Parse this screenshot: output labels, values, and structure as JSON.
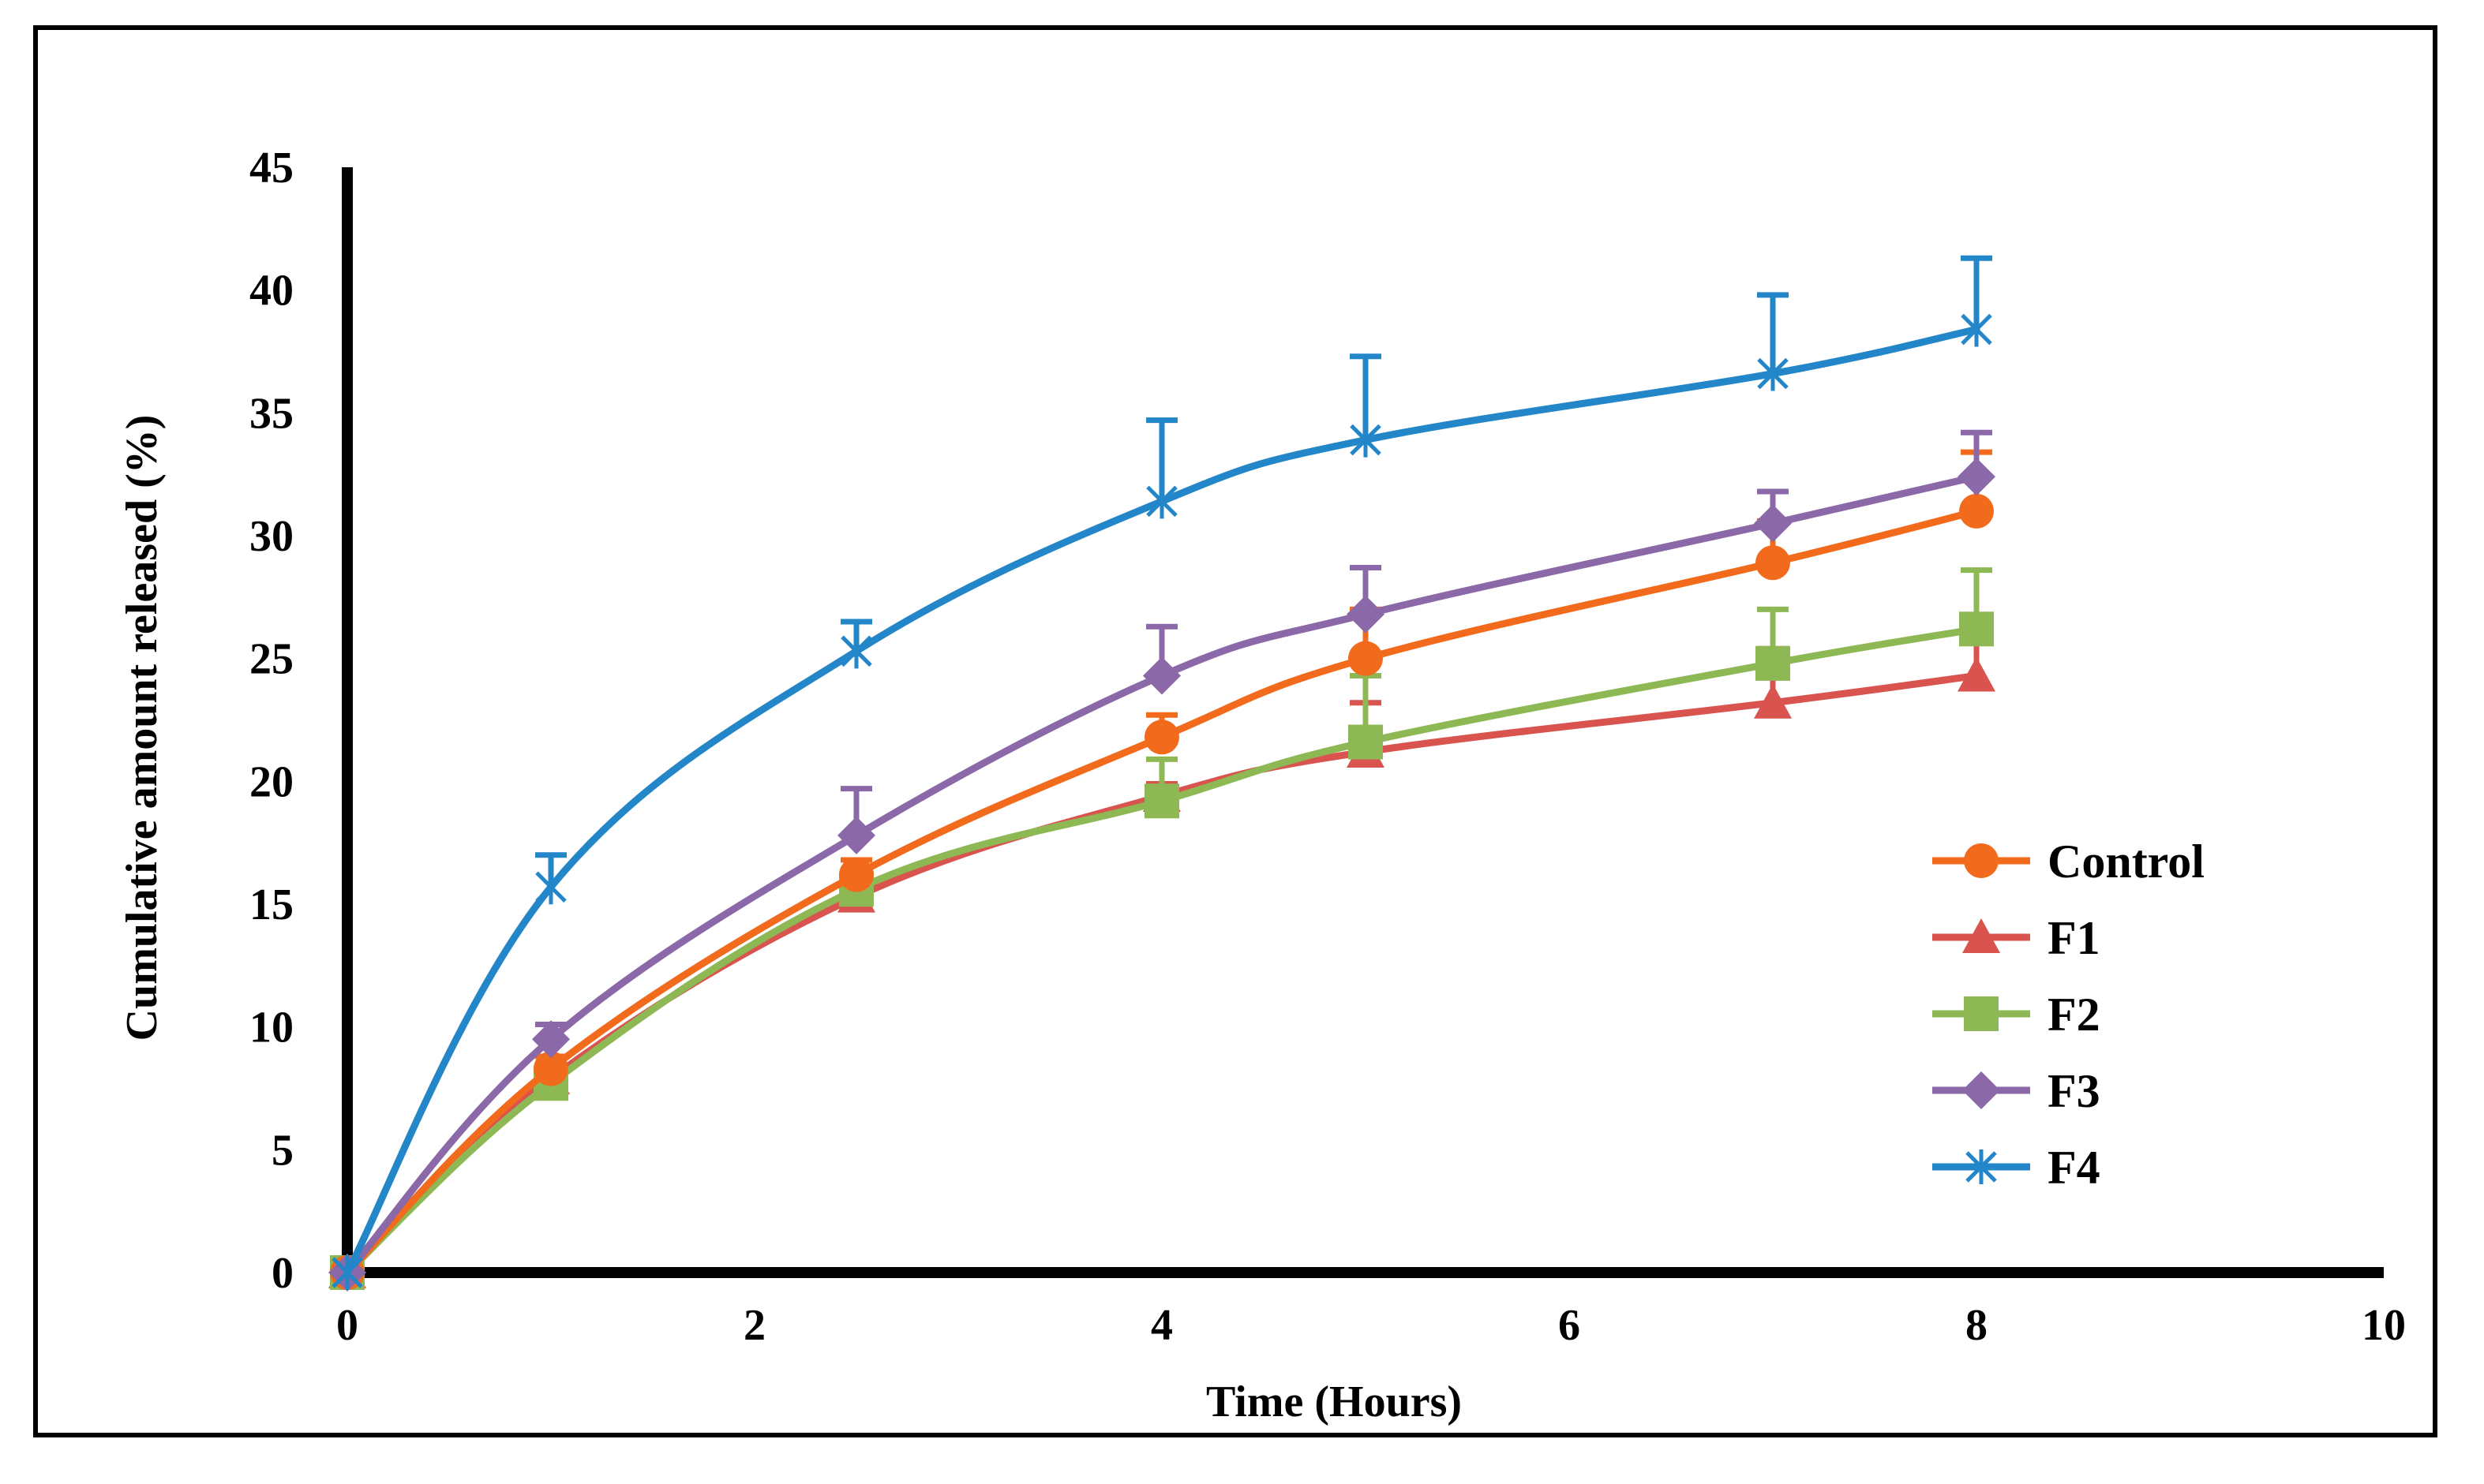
{
  "chart_data": {
    "type": "line",
    "xlabel": "Time (Hours)",
    "ylabel": "Cumulative amount released (%)",
    "xlim": [
      0,
      10
    ],
    "ylim": [
      0,
      45
    ],
    "x_ticks": [
      0,
      2,
      4,
      6,
      8,
      10
    ],
    "y_ticks": [
      0,
      5,
      10,
      15,
      20,
      25,
      30,
      35,
      40,
      45
    ],
    "grid": false,
    "legend_position": "right",
    "x": [
      0,
      1,
      2.5,
      4,
      5,
      7,
      8
    ],
    "series": [
      {
        "name": "Control",
        "color": "#F26A1B",
        "marker": "circle",
        "values": [
          0,
          8.3,
          16.2,
          21.8,
          25.0,
          28.9,
          31.0
        ],
        "errors": [
          0,
          0.5,
          0.6,
          0.9,
          2.0,
          1.7,
          2.4
        ]
      },
      {
        "name": "F1",
        "color": "#D9534F",
        "marker": "triangle",
        "values": [
          0,
          7.9,
          15.3,
          19.4,
          21.2,
          23.2,
          24.3
        ],
        "errors": [
          0,
          0.4,
          0.5,
          0.5,
          2.0,
          2.2,
          2.3
        ]
      },
      {
        "name": "F2",
        "color": "#8DB854",
        "marker": "square",
        "values": [
          0,
          7.7,
          15.6,
          19.2,
          21.6,
          24.8,
          26.2
        ],
        "errors": [
          0,
          0.4,
          0.7,
          1.7,
          2.7,
          2.2,
          2.4
        ]
      },
      {
        "name": "F3",
        "color": "#8B68A8",
        "marker": "diamond",
        "values": [
          0,
          9.5,
          17.8,
          24.3,
          26.8,
          30.5,
          32.4
        ],
        "errors": [
          0,
          0.6,
          1.9,
          2.0,
          1.9,
          1.3,
          1.8
        ]
      },
      {
        "name": "F4",
        "color": "#2286C8",
        "marker": "star",
        "values": [
          0,
          15.7,
          25.3,
          31.4,
          33.9,
          36.6,
          38.4
        ],
        "errors": [
          0,
          1.3,
          1.2,
          3.3,
          3.4,
          3.2,
          2.9
        ]
      }
    ]
  }
}
